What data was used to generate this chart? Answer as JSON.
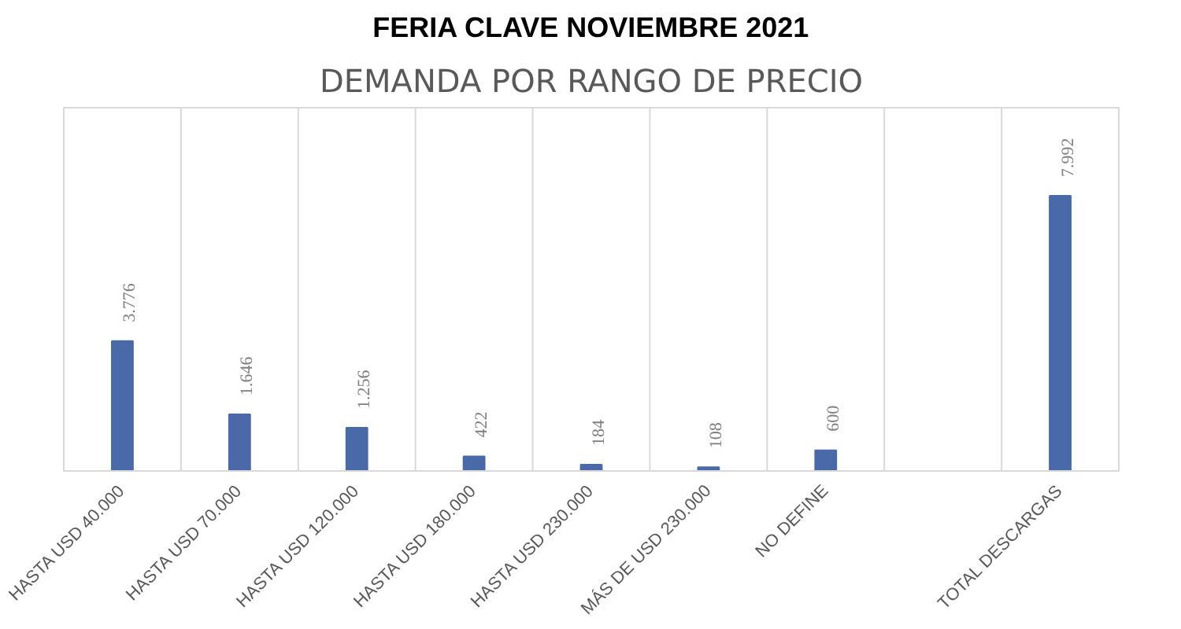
{
  "chart_data": {
    "type": "bar",
    "title": "FERIA CLAVE NOVIEMBRE 2021",
    "subtitle": "DEMANDA POR RANGO DE PRECIO",
    "categories": [
      "HASTA USD 40.000",
      "HASTA USD 70.000",
      "HASTA USD 120.000",
      "HASTA USD 180.000",
      "HASTA USD 230.000",
      "MÁS DE USD 230.000",
      "NO DEFINE",
      null,
      "TOTAL DESCARGAS"
    ],
    "values": [
      3776,
      1646,
      1256,
      422,
      184,
      108,
      600,
      null,
      7992
    ],
    "value_labels": [
      "3.776",
      "1.646",
      "1.256",
      "422",
      "184",
      "108",
      "600",
      null,
      "7.992"
    ],
    "color": "#4a69a8",
    "grid": "x"
  }
}
